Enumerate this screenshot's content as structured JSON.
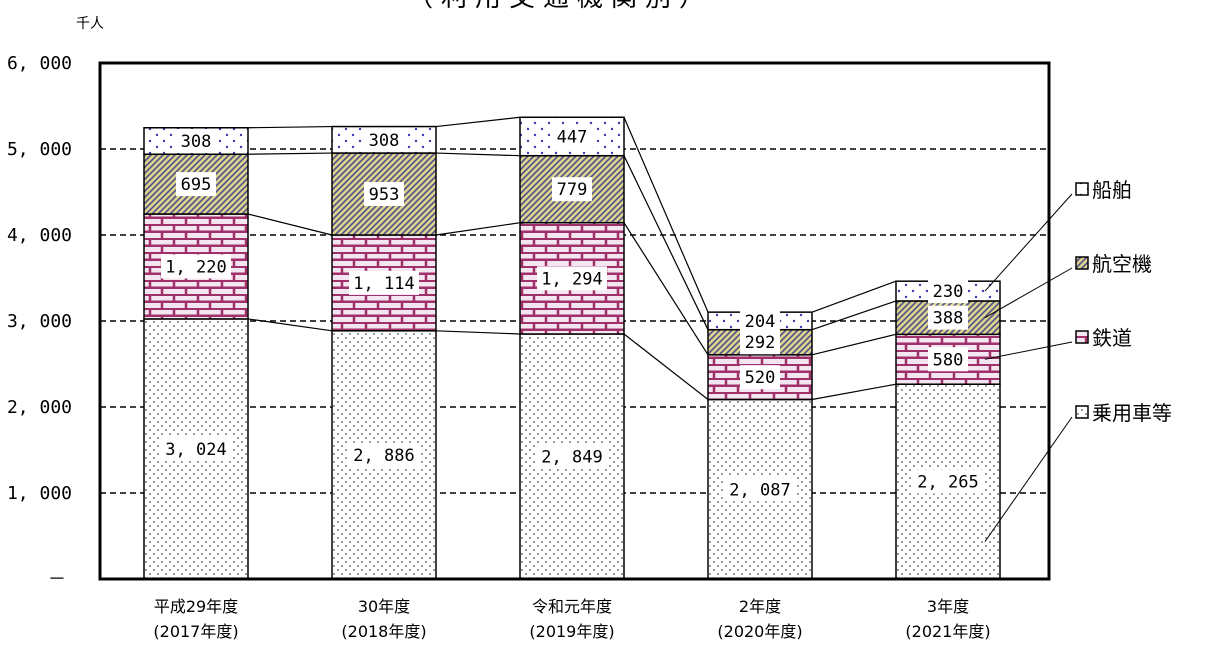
{
  "chart_data": {
    "type": "bar",
    "stacked": true,
    "title": "（利用交通機関別）",
    "unit_label": "千人",
    "categories": [
      [
        "平成29年度",
        "(2017年度)"
      ],
      [
        "30年度",
        "(2018年度)"
      ],
      [
        "令和元年度",
        "(2019年度)"
      ],
      [
        "2年度",
        "(2020年度)"
      ],
      [
        "3年度",
        "(2021年度)"
      ]
    ],
    "series": [
      {
        "name": "乗用車等",
        "values": [
          3024,
          2886,
          2849,
          2087,
          2265
        ],
        "labels": [
          "3, 024",
          "2, 886",
          "2, 849",
          "2, 087",
          "2, 265"
        ]
      },
      {
        "name": "鉄道",
        "values": [
          1220,
          1114,
          1294,
          520,
          580
        ],
        "labels": [
          "1, 220",
          "1, 114",
          "1, 294",
          "520",
          "580"
        ]
      },
      {
        "name": "航空機",
        "values": [
          695,
          953,
          779,
          292,
          388
        ],
        "labels": [
          "695",
          "953",
          "779",
          "292",
          "388"
        ]
      },
      {
        "name": "船舶",
        "values": [
          308,
          308,
          447,
          204,
          230
        ],
        "labels": [
          "308",
          "308",
          "447",
          "204",
          "230"
        ]
      }
    ],
    "legend_order": [
      "船舶",
      "航空機",
      "鉄道",
      "乗用車等"
    ],
    "legend_position": "right",
    "ylim": [
      0,
      6000
    ],
    "yticks": [
      0,
      1000,
      2000,
      3000,
      4000,
      5000,
      6000
    ],
    "ytick_labels": [
      "－",
      "1, 000",
      "2, 000",
      "3, 000",
      "4, 000",
      "5, 000",
      "6, 000"
    ],
    "grid": "dashed horizontal",
    "colors": {
      "brick": "#a0306a",
      "brick_fill": "#f0e4ee",
      "hatch": "#5b5b9a",
      "hatch_bg": "#d8d08a",
      "dots": "#444444",
      "ship_dots": "#3a3ab0"
    }
  }
}
